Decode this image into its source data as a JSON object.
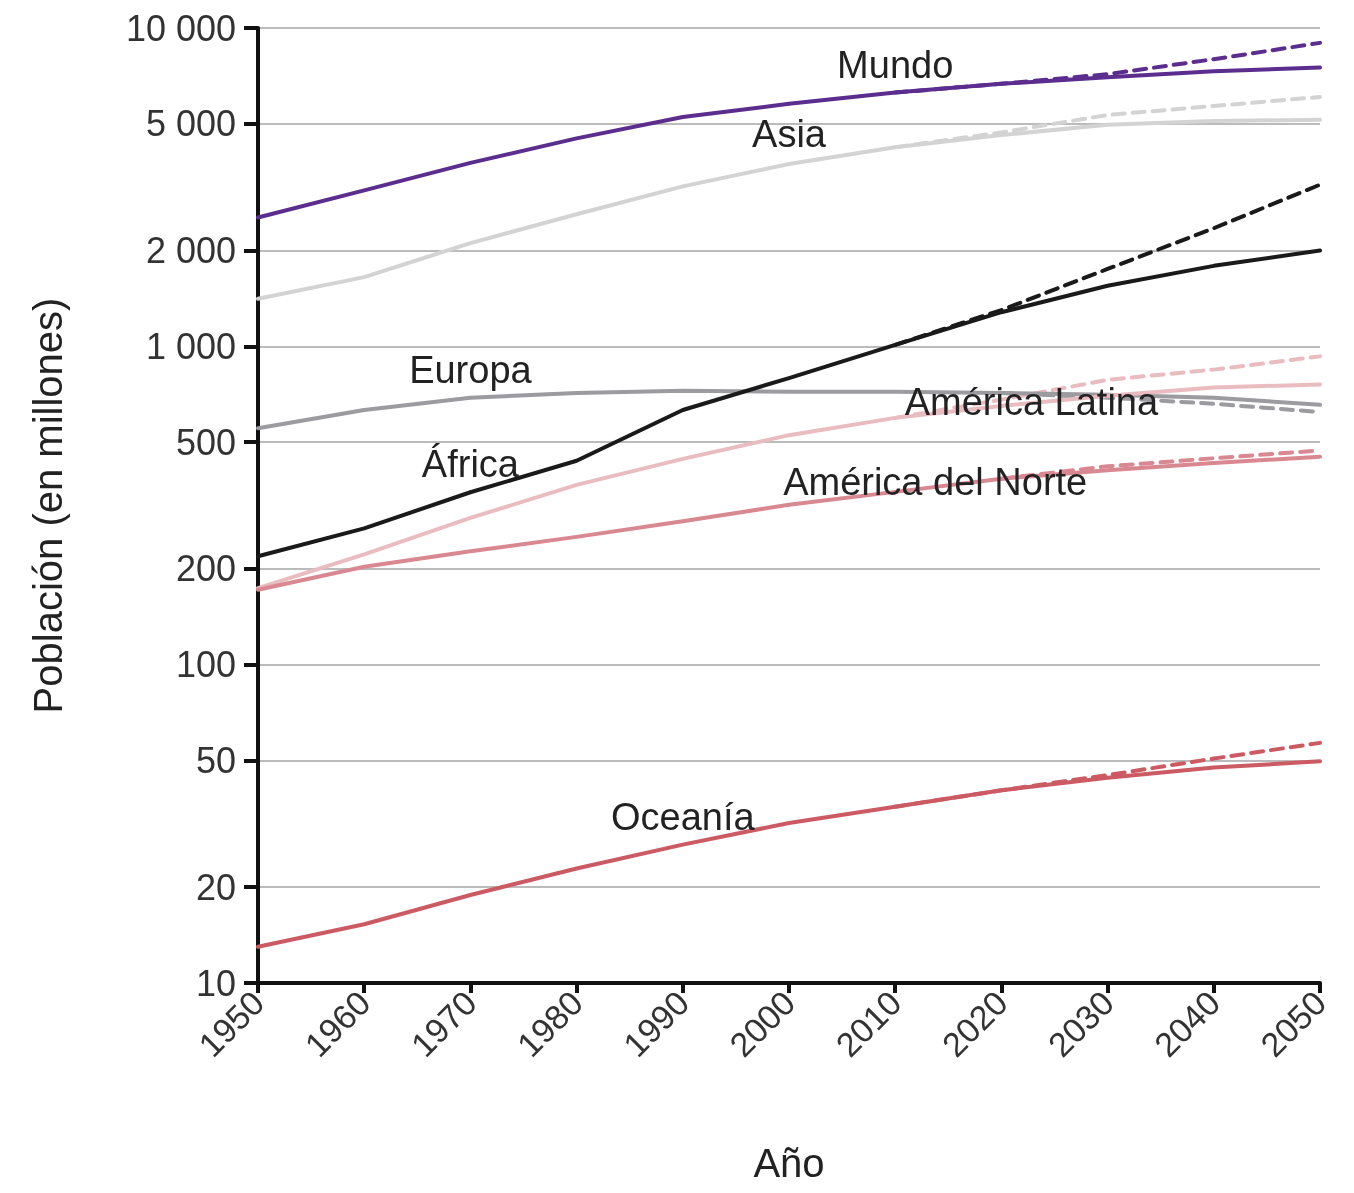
{
  "chart_data": {
    "type": "line",
    "xlabel": "Año",
    "ylabel": "Población (en millones)",
    "log": "y",
    "grid": "y",
    "legend": false,
    "marker": "none",
    "xlim": [
      1950,
      2050
    ],
    "xticks": [
      1950,
      1960,
      1970,
      1980,
      1990,
      2000,
      2010,
      2020,
      2030,
      2040,
      2050
    ],
    "ylim": [
      10,
      10000
    ],
    "yticks": [
      10,
      20,
      50,
      100,
      200,
      500,
      {
        "value": 1000,
        "label": "1 000"
      },
      {
        "value": 2000,
        "label": "2 000"
      },
      {
        "value": 5000,
        "label": "5 000"
      },
      {
        "value": 10000,
        "label": "10 000"
      }
    ],
    "series": [
      {
        "name": "Mundo",
        "color": "#5b2d8e",
        "line_style": "solid",
        "x": [
          1950,
          1960,
          1970,
          1980,
          1990,
          2000,
          2010,
          2020,
          2030,
          2040,
          2050
        ],
        "values": [
          2540,
          3090,
          3770,
          4500,
          5250,
          5780,
          6270,
          6680,
          7000,
          7320,
          7510
        ]
      },
      {
        "color": "#5b2d8e",
        "line_style": "dashed",
        "x": [
          2010,
          2020,
          2030,
          2040,
          2050
        ],
        "values": [
          6270,
          6680,
          7160,
          7980,
          8980
        ]
      },
      {
        "name": "Asia",
        "color": "#d3d3d3",
        "line_style": "solid",
        "x": [
          1950,
          1960,
          1970,
          1980,
          1990,
          2000,
          2010,
          2020,
          2030,
          2040,
          2050
        ],
        "values": [
          1410,
          1650,
          2110,
          2600,
          3180,
          3740,
          4220,
          4610,
          4970,
          5100,
          5150
        ]
      },
      {
        "color": "#d3d3d3",
        "line_style": "dashed",
        "x": [
          2010,
          2020,
          2030,
          2040,
          2050
        ],
        "values": [
          4220,
          4700,
          5330,
          5690,
          6070
        ]
      },
      {
        "name": "Europa",
        "color": "#9b9ba0",
        "line_style": "solid",
        "x": [
          1950,
          1960,
          1970,
          1980,
          1990,
          2000,
          2010,
          2020,
          2030,
          2040,
          2050
        ],
        "values": [
          553,
          631,
          689,
          714,
          725,
          720,
          720,
          713,
          705,
          690,
          655
        ]
      },
      {
        "color": "#9b9ba0",
        "line_style": "dashed",
        "x": [
          2020,
          2030,
          2040,
          2050
        ],
        "values": [
          713,
          690,
          660,
          622
        ]
      },
      {
        "name": "África",
        "color": "#1a1a1a",
        "line_style": "solid",
        "x": [
          1950,
          1960,
          1970,
          1980,
          1990,
          2000,
          2010,
          2020,
          2030,
          2040,
          2050
        ],
        "values": [
          219,
          268,
          348,
          437,
          631,
          795,
          1010,
          1280,
          1550,
          1790,
          2000
        ]
      },
      {
        "color": "#1a1a1a",
        "line_style": "dashed",
        "x": [
          2010,
          2020,
          2030,
          2040,
          2050
        ],
        "values": [
          1010,
          1300,
          1750,
          2350,
          3220
        ]
      },
      {
        "name": "América Latina",
        "color": "#e9bcc0",
        "line_style": "solid",
        "x": [
          1950,
          1960,
          1970,
          1980,
          1990,
          2000,
          2010,
          2020,
          2030,
          2040,
          2050
        ],
        "values": [
          174,
          222,
          289,
          367,
          443,
          526,
          596,
          650,
          700,
          742,
          759
        ]
      },
      {
        "color": "#e9bcc0",
        "line_style": "dashed",
        "x": [
          2010,
          2020,
          2030,
          2040,
          2050
        ],
        "values": [
          596,
          680,
          785,
          845,
          930
        ]
      },
      {
        "name": "América del Norte",
        "color": "#d98891",
        "line_style": "solid",
        "x": [
          1950,
          1960,
          1970,
          1980,
          1990,
          2000,
          2010,
          2020,
          2030,
          2040,
          2050
        ],
        "values": [
          172,
          203,
          227,
          252,
          282,
          318,
          349,
          384,
          408,
          430,
          450
        ]
      },
      {
        "color": "#d98891",
        "line_style": "dashed",
        "x": [
          2020,
          2030,
          2040,
          2050
        ],
        "values": [
          384,
          420,
          445,
          471
        ]
      },
      {
        "name": "Oceanía",
        "color": "#cc5a63",
        "line_style": "solid",
        "x": [
          1950,
          1960,
          1970,
          1980,
          1990,
          2000,
          2010,
          2020,
          2030,
          2040,
          2050
        ],
        "values": [
          13.0,
          15.3,
          18.9,
          22.9,
          27.2,
          31.8,
          35.8,
          40.3,
          44.1,
          47.5,
          49.7
        ]
      },
      {
        "color": "#cc5a63",
        "line_style": "dashed",
        "x": [
          2010,
          2020,
          2030,
          2040,
          2050
        ],
        "values": [
          35.8,
          40.3,
          45,
          50.7,
          56.8
        ]
      }
    ]
  }
}
